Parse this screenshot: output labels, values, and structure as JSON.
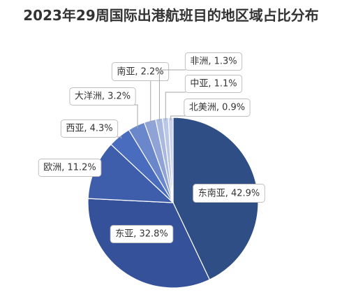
{
  "chart_data": {
    "type": "pie",
    "title": "2023年29周国际出港航班目的地区域占比分布",
    "slices": [
      {
        "label": "东南亚",
        "value": 42.9,
        "text": "东南亚, 42.9%",
        "color": "#2F4E85"
      },
      {
        "label": "东亚",
        "value": 32.8,
        "text": "东亚, 32.8%",
        "color": "#34519A"
      },
      {
        "label": "欧洲",
        "value": 11.2,
        "text": "欧洲, 11.2%",
        "color": "#3E5DAB"
      },
      {
        "label": "西亚",
        "value": 4.3,
        "text": "西亚, 4.3%",
        "color": "#4A6CBE"
      },
      {
        "label": "大洋洲",
        "value": 3.2,
        "text": "大洋洲, 3.2%",
        "color": "#6B87CC"
      },
      {
        "label": "南亚",
        "value": 2.2,
        "text": "南亚, 2.2%",
        "color": "#8FA3D6"
      },
      {
        "label": "非洲",
        "value": 1.3,
        "text": "非洲, 1.3%",
        "color": "#A9B8DF"
      },
      {
        "label": "中亚",
        "value": 1.1,
        "text": "中亚, 1.1%",
        "color": "#BBC7E6"
      },
      {
        "label": "北美洲",
        "value": 0.9,
        "text": "北美洲, 0.9%",
        "color": "#CAD4EC"
      }
    ]
  }
}
